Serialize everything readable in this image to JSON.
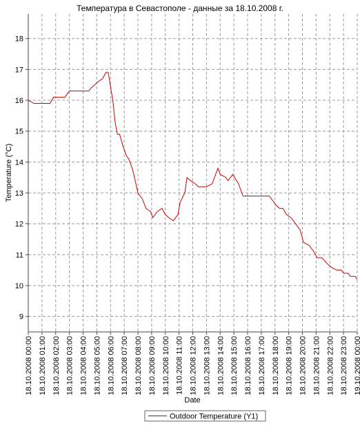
{
  "chart_data": {
    "type": "line",
    "title": "Температура в Севастополе - данные за 18.10.2008 г.",
    "x_label": "Date",
    "y_label": "Temperature (°C)",
    "x": [
      "18.10.2008 00:00",
      "18.10.2008 00:25",
      "18.10.2008 01:35",
      "18.10.2008 01:50",
      "18.10.2008 02:40",
      "18.10.2008 03:00",
      "18.10.2008 04:25",
      "18.10.2008 04:35",
      "18.10.2008 05:05",
      "18.10.2008 05:25",
      "18.10.2008 05:40",
      "18.10.2008 05:50",
      "18.10.2008 06:10",
      "18.10.2008 06:20",
      "18.10.2008 06:30",
      "18.10.2008 06:40",
      "18.10.2008 06:55",
      "18.10.2008 07:10",
      "18.10.2008 07:20",
      "18.10.2008 07:35",
      "18.10.2008 07:45",
      "18.10.2008 08:00",
      "18.10.2008 08:20",
      "18.10.2008 08:35",
      "18.10.2008 08:55",
      "18.10.2008 09:05",
      "18.10.2008 09:25",
      "18.10.2008 09:45",
      "18.10.2008 10:00",
      "18.10.2008 10:15",
      "18.10.2008 10:35",
      "18.10.2008 10:55",
      "18.10.2008 11:05",
      "18.10.2008 11:25",
      "18.10.2008 11:35",
      "18.10.2008 11:50",
      "18.10.2008 12:10",
      "18.10.2008 12:25",
      "18.10.2008 12:40",
      "18.10.2008 13:00",
      "18.10.2008 13:25",
      "18.10.2008 13:50",
      "18.10.2008 14:00",
      "18.10.2008 14:25",
      "18.10.2008 14:35",
      "18.10.2008 14:55",
      "18.10.2008 15:20",
      "18.10.2008 15:40",
      "18.10.2008 17:35",
      "18.10.2008 18:05",
      "18.10.2008 18:20",
      "18.10.2008 18:35",
      "18.10.2008 18:50",
      "18.10.2008 19:10",
      "18.10.2008 19:30",
      "18.10.2008 19:50",
      "18.10.2008 20:05",
      "18.10.2008 20:30",
      "18.10.2008 20:50",
      "18.10.2008 21:05",
      "18.10.2008 21:25",
      "18.10.2008 21:50",
      "18.10.2008 22:05",
      "18.10.2008 22:30",
      "18.10.2008 22:50",
      "18.10.2008 23:00",
      "18.10.2008 23:20",
      "18.10.2008 23:30",
      "18.10.2008 23:50",
      "19.10.2008 00:00"
    ],
    "series": [
      {
        "name": "Outdoor Temperature (Y1)",
        "color": "#cc0000",
        "values": [
          16.0,
          15.9,
          15.9,
          16.1,
          16.1,
          16.3,
          16.3,
          16.4,
          16.6,
          16.7,
          16.9,
          16.9,
          16.0,
          15.3,
          14.9,
          14.9,
          14.5,
          14.2,
          14.1,
          13.8,
          13.5,
          13.0,
          12.8,
          12.5,
          12.4,
          12.2,
          12.4,
          12.5,
          12.3,
          12.2,
          12.1,
          12.3,
          12.7,
          13.0,
          13.5,
          13.4,
          13.3,
          13.2,
          13.2,
          13.2,
          13.3,
          13.8,
          13.6,
          13.5,
          13.4,
          13.6,
          13.3,
          12.9,
          12.9,
          12.6,
          12.5,
          12.5,
          12.3,
          12.2,
          12.0,
          11.8,
          11.4,
          11.3,
          11.1,
          10.9,
          10.9,
          10.7,
          10.6,
          10.5,
          10.5,
          10.4,
          10.4,
          10.3,
          10.3,
          10.2
        ]
      }
    ],
    "xlim": [
      "18.10.2008 00:00",
      "19.10.2008 00:00"
    ],
    "xticks": [
      "18.10.2008 00:00",
      "18.10.2008 01:00",
      "18.10.2008 02:00",
      "18.10.2008 03:00",
      "18.10.2008 04:00",
      "18.10.2008 05:00",
      "18.10.2008 06:00",
      "18.10.2008 07:00",
      "18.10.2008 08:00",
      "18.10.2008 09:00",
      "18.10.2008 10:00",
      "18.10.2008 11:00",
      "18.10.2008 12:00",
      "18.10.2008 13:00",
      "18.10.2008 14:00",
      "18.10.2008 15:00",
      "18.10.2008 16:00",
      "18.10.2008 17:00",
      "18.10.2008 18:00",
      "18.10.2008 19:00",
      "18.10.2008 20:00",
      "18.10.2008 21:00",
      "18.10.2008 22:00",
      "18.10.2008 23:00",
      "19.10.2008 00:00"
    ],
    "ylim": [
      8.5,
      18.8
    ],
    "yticks": [
      9,
      10,
      11,
      12,
      13,
      14,
      15,
      16,
      17,
      18
    ],
    "grid": true,
    "legend": "bottom"
  }
}
